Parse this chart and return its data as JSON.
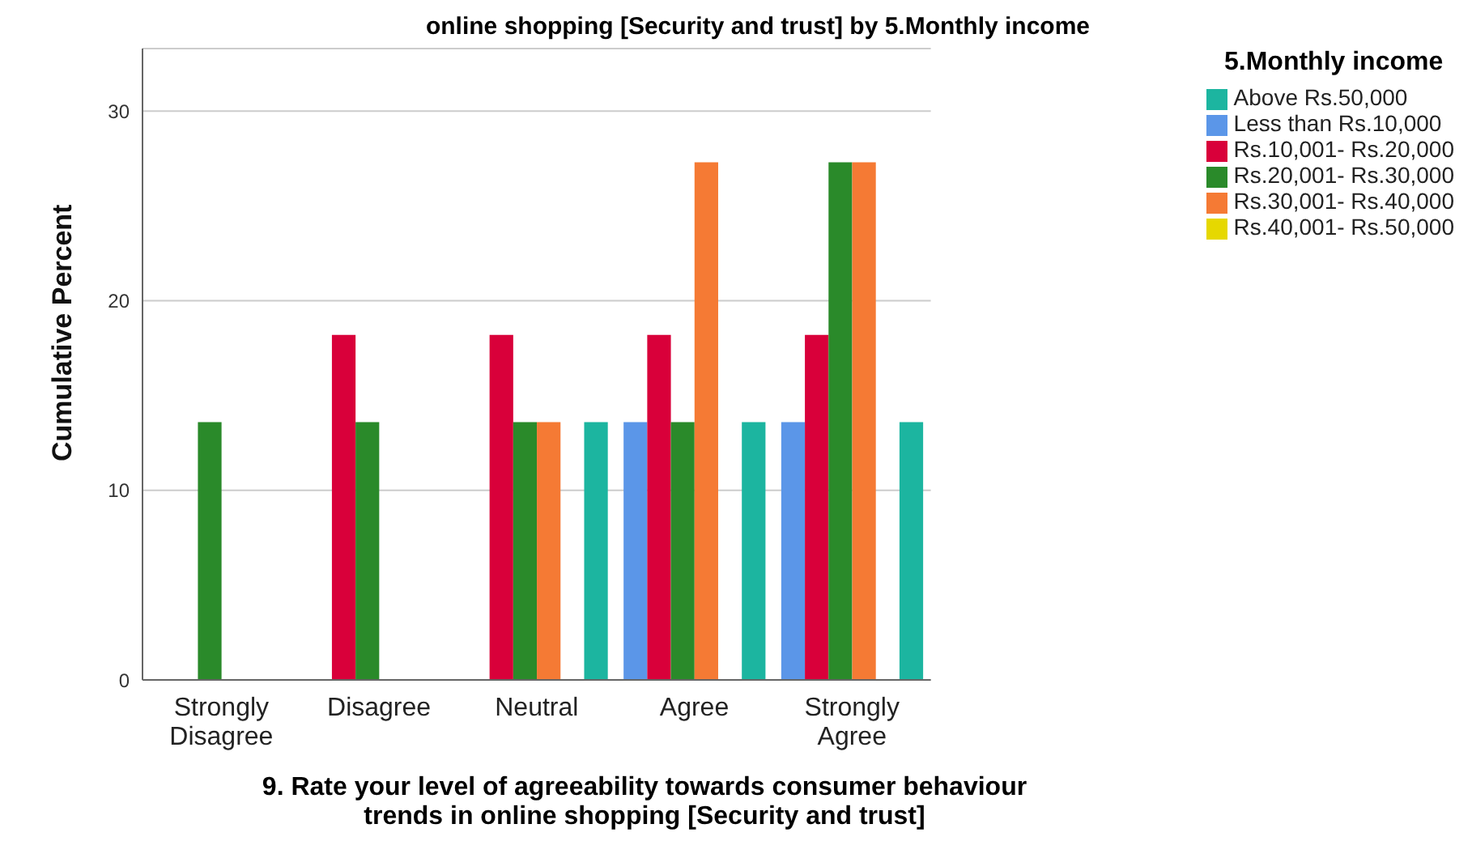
{
  "chart_data": {
    "type": "bar",
    "title": "online shopping [Security and trust] by 5.Monthly income",
    "xlabel": "9. Rate your level of agreeability towards consumer behaviour trends in online shopping [Security and trust]",
    "ylabel": "Cumulative Percent",
    "legend_title": "5.Monthly income",
    "categories": [
      "Strongly Disagree",
      "Disagree",
      "Neutral",
      "Agree",
      "Strongly Agree"
    ],
    "series": [
      {
        "name": "Less than Rs.10,000",
        "color": "#5b96e8",
        "values": [
          null,
          null,
          null,
          13.6,
          13.6
        ]
      },
      {
        "name": "Rs.10,001- Rs.20,000",
        "color": "#d9003a",
        "values": [
          null,
          18.2,
          18.2,
          18.2,
          18.2
        ]
      },
      {
        "name": "Rs.20,001- Rs.30,000",
        "color": "#2a8a2a",
        "values": [
          13.6,
          13.6,
          13.6,
          13.6,
          27.3
        ]
      },
      {
        "name": "Rs.30,001- Rs.40,000",
        "color": "#f57a34",
        "values": [
          null,
          null,
          13.6,
          27.3,
          27.3
        ]
      },
      {
        "name": "Rs.40,001- Rs.50,000",
        "color": "#e6d800",
        "values": [
          null,
          null,
          null,
          null,
          null
        ]
      },
      {
        "name": "Above Rs.50,000",
        "color": "#1cb5a0",
        "values": [
          null,
          null,
          13.6,
          13.6,
          13.6
        ]
      }
    ],
    "ylim": [
      0,
      33.3
    ],
    "yticks": [
      0,
      10,
      20,
      30
    ],
    "grid": "y",
    "legend": "top right"
  }
}
